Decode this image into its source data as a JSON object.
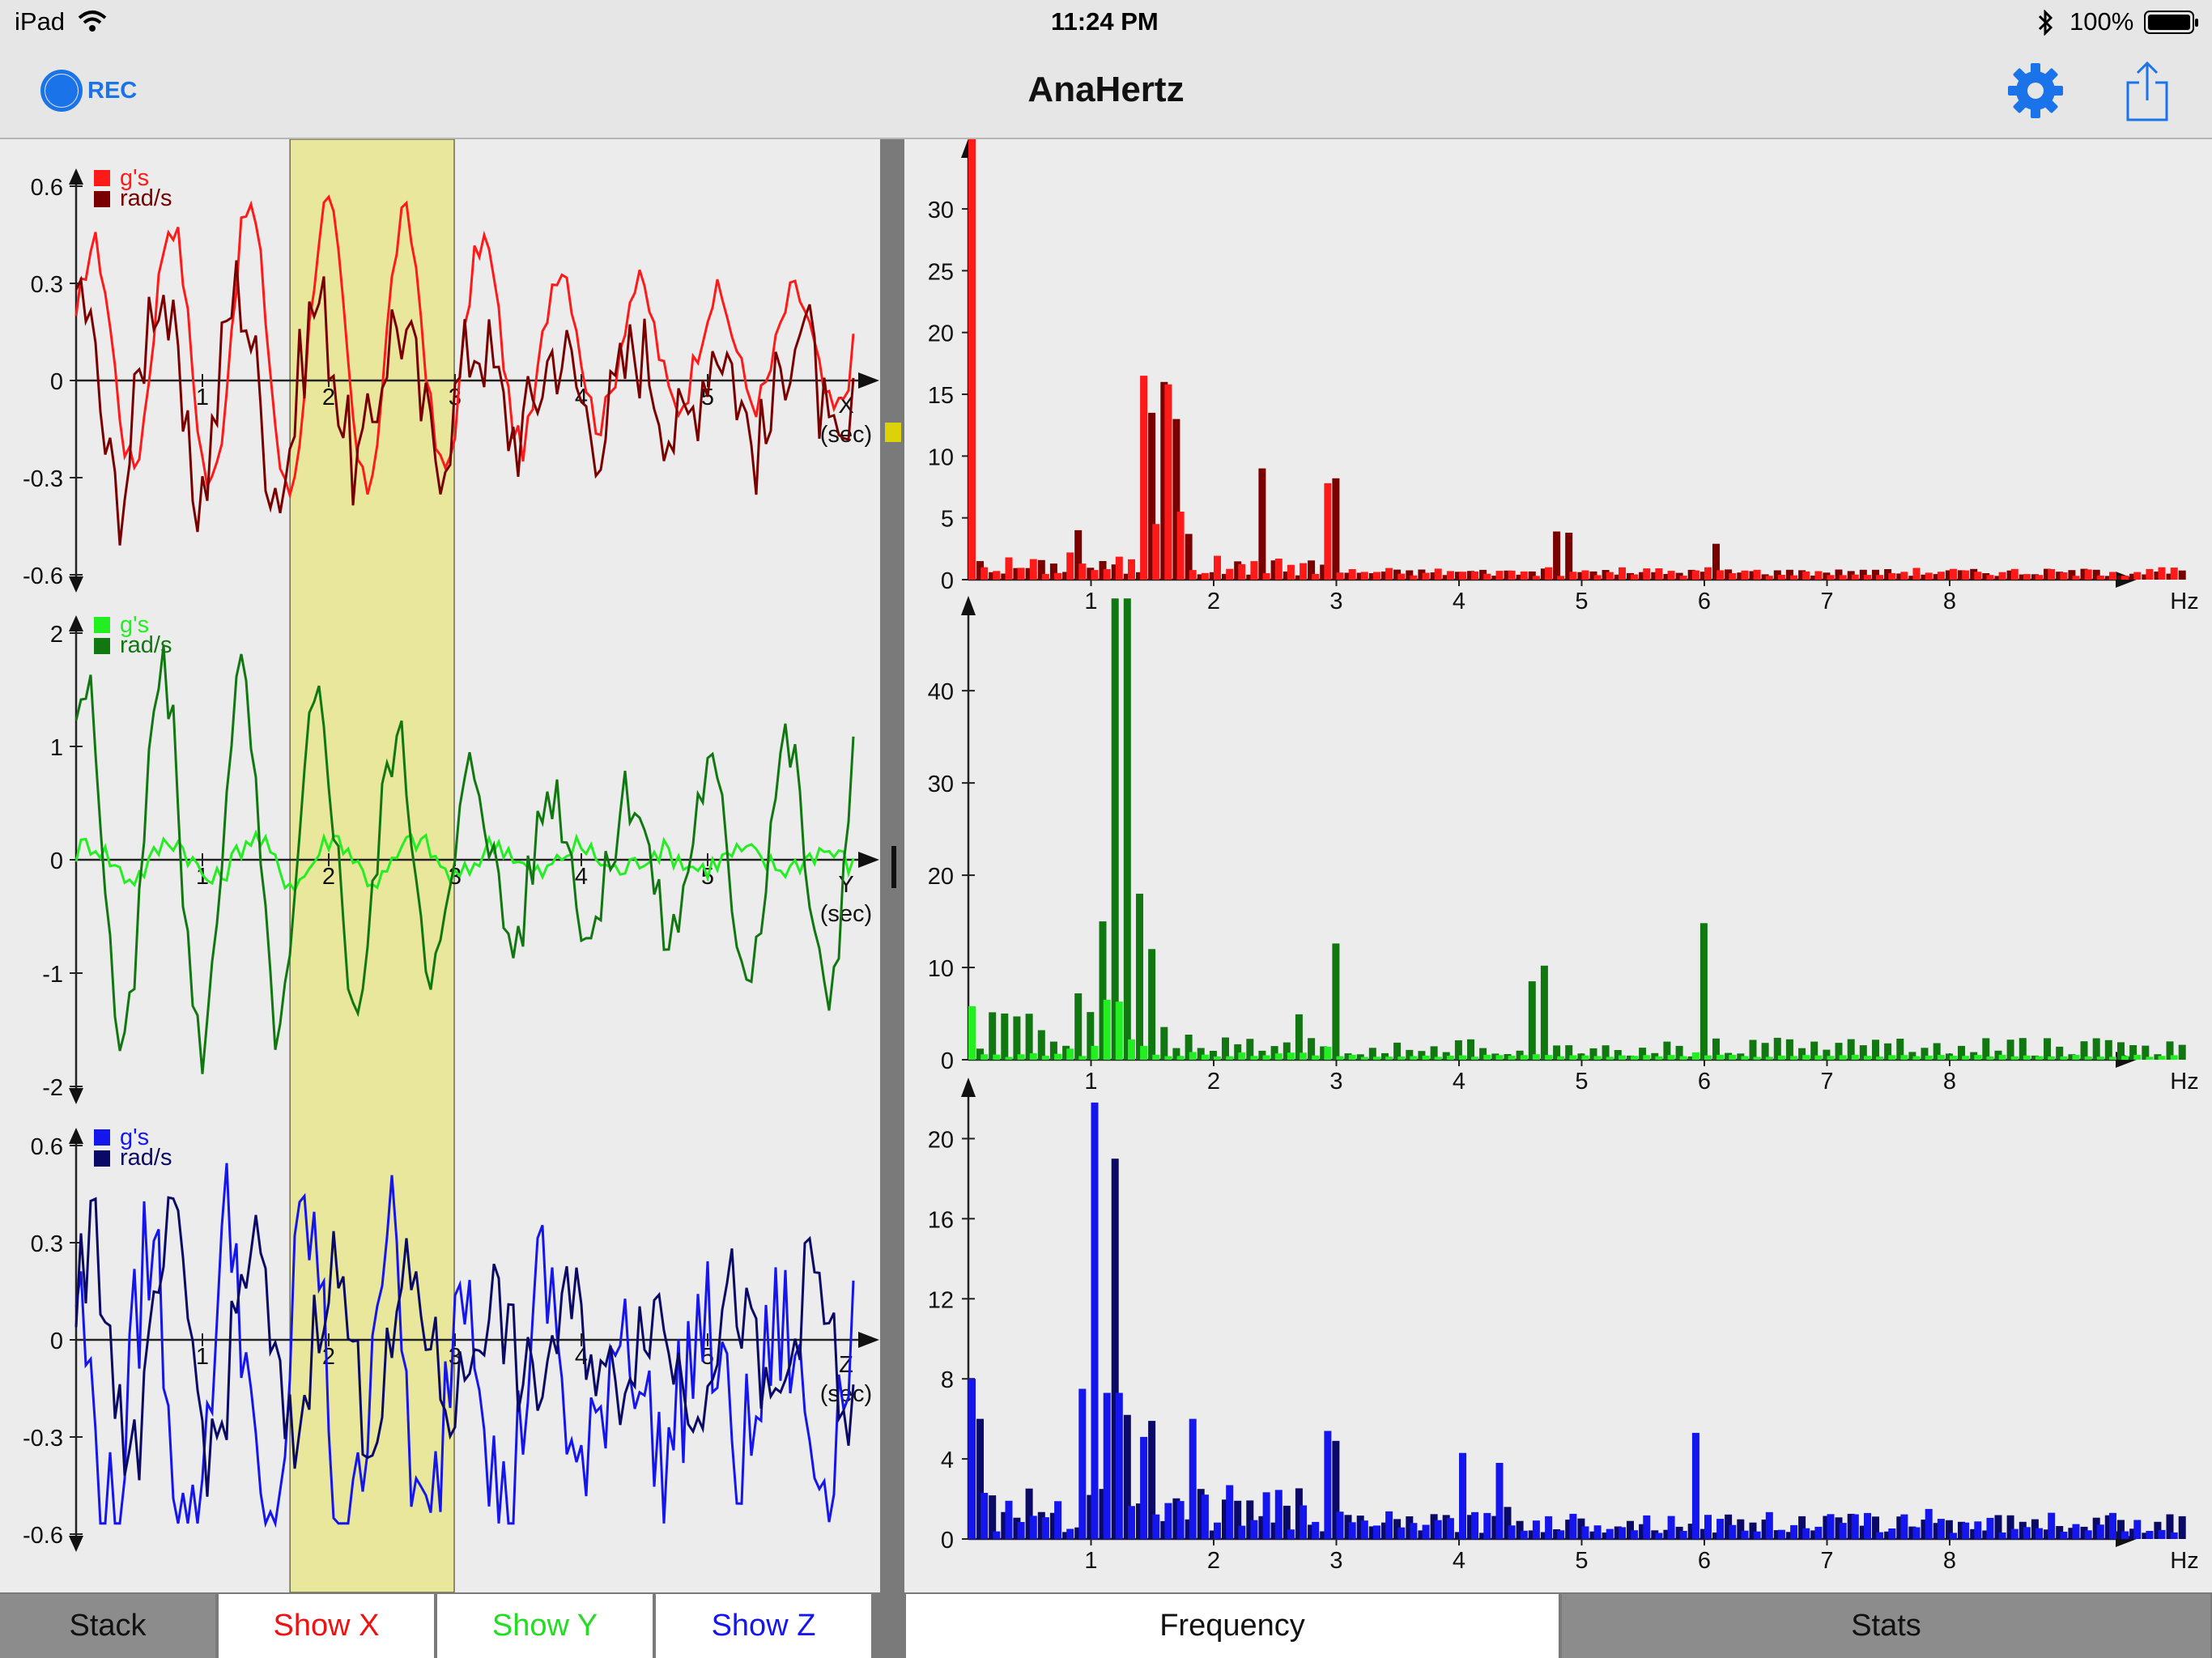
{
  "status": {
    "device": "iPad",
    "time": "11:24 PM",
    "battery": "100%"
  },
  "toolbar": {
    "rec_label": "REC",
    "title": "AnaHertz",
    "settings_icon": "gear-icon",
    "share_icon": "share-icon",
    "accent": "#1a73e8"
  },
  "time_plots": [
    {
      "axis": "X",
      "unit": "(sec)",
      "y_ticks": [
        "0.6",
        "0.3",
        "0",
        "-0.3",
        "-0.6"
      ],
      "legend": [
        "g's",
        "rad/s"
      ],
      "colors": [
        "#ff1a1a",
        "#7a0000"
      ]
    },
    {
      "axis": "Y",
      "unit": "(sec)",
      "y_ticks": [
        "2",
        "1",
        "0",
        "-1",
        "-2"
      ],
      "legend": [
        "g's",
        "rad/s"
      ],
      "colors": [
        "#22ee22",
        "#117711"
      ]
    },
    {
      "axis": "Z",
      "unit": "(sec)",
      "y_ticks": [
        "0.6",
        "0.3",
        "0",
        "-0.3",
        "-0.6"
      ],
      "legend": [
        "g's",
        "rad/s"
      ],
      "colors": [
        "#1515ee",
        "#0a0a66"
      ]
    }
  ],
  "time_x_ticks": [
    "1",
    "2",
    "3",
    "4",
    "5"
  ],
  "selection_window": {
    "start_sec": 1.7,
    "end_sec": 3.0,
    "color": "#e8e79c"
  },
  "freq_plots": [
    {
      "unit": "Hz",
      "y_ticks": [
        "0",
        "5",
        "10",
        "15",
        "20",
        "25",
        "30"
      ],
      "colors": [
        "#ff1a1a",
        "#7a0000"
      ]
    },
    {
      "unit": "Hz",
      "y_ticks": [
        "0",
        "10",
        "20",
        "30",
        "40"
      ],
      "colors": [
        "#22ee22",
        "#117711"
      ]
    },
    {
      "unit": "Hz",
      "y_ticks": [
        "0",
        "4",
        "8",
        "12",
        "16",
        "20"
      ],
      "colors": [
        "#1515ee",
        "#0a0a66"
      ]
    }
  ],
  "freq_x_ticks": [
    "1",
    "2",
    "3",
    "4",
    "5",
    "6",
    "7",
    "8"
  ],
  "left_tabs": [
    {
      "label": "Stack",
      "color": "#111111",
      "active": false
    },
    {
      "label": "Show X",
      "color": "#ee1111",
      "active": true
    },
    {
      "label": "Show Y",
      "color": "#22dd22",
      "active": true
    },
    {
      "label": "Show Z",
      "color": "#1515ee",
      "active": true
    }
  ],
  "right_tabs": [
    {
      "label": "Frequency",
      "active": true
    },
    {
      "label": "Stats",
      "active": false
    }
  ]
}
